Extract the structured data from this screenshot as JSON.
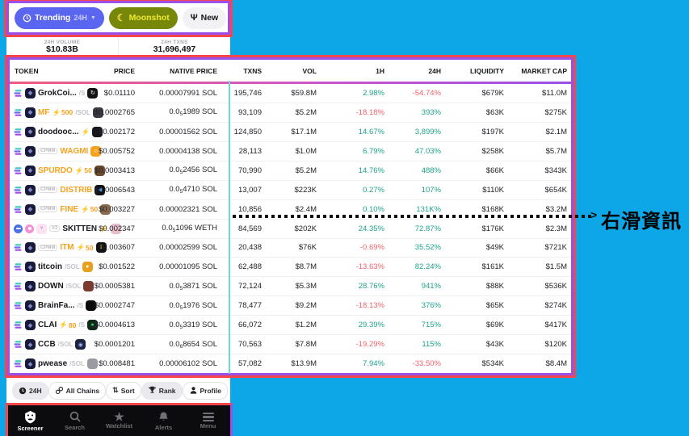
{
  "annotation": {
    "swipe_hint": "右滑資訊",
    "arrow": ">"
  },
  "colors": {
    "background": "#0da6e6",
    "annotation_red": "#f4474d",
    "annotation_purple": "#9b4fe8",
    "phone_edge_teal": "#6fd8d4",
    "positive": "#1fa28c",
    "negative": "#f2636b",
    "trending_blue": "#5b66f0",
    "moonshot_olive": "#76870a",
    "moonshot_text": "#f0ea2e",
    "orange_token": "#f5a21f"
  },
  "top_bar": {
    "trending": {
      "label": "Trending",
      "timeframe": "24H"
    },
    "moonshot": {
      "label": "Moonshot"
    },
    "new": {
      "label": "New"
    }
  },
  "stats": {
    "volume_label": "24H VOLUME",
    "volume_value": "$10.83B",
    "txns_label": "24H TXNS",
    "txns_value": "31,696,497"
  },
  "table": {
    "headers": [
      "TOKEN",
      "PRICE",
      "NATIVE PRICE",
      "TXNS",
      "VOL",
      "1H",
      "24H",
      "LIQUIDITY",
      "MARKET CAP"
    ],
    "rows": [
      {
        "name": "GrokCoi...",
        "name_color": "#17171c",
        "badge": null,
        "bolt": false,
        "bolt_num": "",
        "pair": "/S",
        "chain": "sol",
        "av_bg": "#141414",
        "av_fg": "#ffffff",
        "av_glyph": "↻",
        "price": "$0.01110",
        "native_pre": "0.00007991",
        "native_sub": "",
        "native_post": " SOL",
        "txns": "195,746",
        "vol": "$59.8M",
        "h1": "2.98%",
        "h1_dir": "up",
        "h24": "-54.74%",
        "h24_dir": "down",
        "liq": "$679K",
        "mcap": "$11.0M"
      },
      {
        "name": "MF",
        "name_color": "#f5a21f",
        "badge": null,
        "bolt": true,
        "bolt_num": "500",
        "pair": "/SOL",
        "chain": "sol",
        "av_bg": "#3a3a42",
        "av_fg": "#bbb",
        "av_glyph": "",
        "price": "$0.0002765",
        "native_pre": "0.0",
        "native_sub": "5",
        "native_post": "1989 SOL",
        "txns": "93,109",
        "vol": "$5.2M",
        "h1": "-18.18%",
        "h1_dir": "down",
        "h24": "393%",
        "h24_dir": "up",
        "liq": "$63K",
        "mcap": "$275K"
      },
      {
        "name": "doodooc...",
        "name_color": "#17171c",
        "badge": null,
        "bolt": true,
        "bolt_num": "",
        "pair": "",
        "chain": "sol",
        "av_bg": "#17171b",
        "av_fg": "#999",
        "av_glyph": "",
        "price": "$0.002172",
        "native_pre": "0.00001562",
        "native_sub": "",
        "native_post": " SOL",
        "txns": "124,850",
        "vol": "$17.1M",
        "h1": "14.67%",
        "h1_dir": "up",
        "h24": "3,899%",
        "h24_dir": "up",
        "liq": "$197K",
        "mcap": "$2.1M"
      },
      {
        "name": "WAGMI",
        "name_color": "#f5a21f",
        "badge": "CPMM",
        "bolt": false,
        "bolt_num": "",
        "pair": "",
        "chain": "sol",
        "av_bg": "#f5a21f",
        "av_fg": "#fff",
        "av_glyph": "☺",
        "price": "$0.005752",
        "native_pre": "0.00004138",
        "native_sub": "",
        "native_post": " SOL",
        "txns": "28,113",
        "vol": "$1.0M",
        "h1": "6.79%",
        "h1_dir": "up",
        "h24": "47.03%",
        "h24_dir": "up",
        "liq": "$258K",
        "mcap": "$5.7M"
      },
      {
        "name": "SPURDO",
        "name_color": "#f5a21f",
        "badge": null,
        "bolt": true,
        "bolt_num": "50",
        "pair": "",
        "chain": "sol",
        "av_bg": "#6b4a2f",
        "av_fg": "#d8c5a8",
        "av_glyph": "",
        "price": "$0.0003413",
        "native_pre": "0.0",
        "native_sub": "5",
        "native_post": "2456 SOL",
        "txns": "70,990",
        "vol": "$5.2M",
        "h1": "14.76%",
        "h1_dir": "up",
        "h24": "488%",
        "h24_dir": "up",
        "liq": "$66K",
        "mcap": "$343K"
      },
      {
        "name": "DISTRIB",
        "name_color": "#f5a21f",
        "badge": "CPMM",
        "bolt": false,
        "bolt_num": "",
        "pair": "",
        "chain": "sol",
        "av_bg": "#101018",
        "av_fg": "#4aa3f0",
        "av_glyph": "◀",
        "price": "$0.0006543",
        "native_pre": "0.0",
        "native_sub": "5",
        "native_post": "4710 SOL",
        "txns": "13,007",
        "vol": "$223K",
        "h1": "0.27%",
        "h1_dir": "up",
        "h24": "107%",
        "h24_dir": "up",
        "liq": "$110K",
        "mcap": "$654K"
      },
      {
        "name": "FINE",
        "name_color": "#f5a21f",
        "badge": "CPMM",
        "bolt": true,
        "bolt_num": "50",
        "pair": "",
        "chain": "sol",
        "av_bg": "#8a6a4a",
        "av_fg": "#e8d8b8",
        "av_glyph": "",
        "price": "$0.003227",
        "native_pre": "0.00002321",
        "native_sub": "",
        "native_post": " SOL",
        "txns": "10,856",
        "vol": "$2.4M",
        "h1": "0.10%",
        "h1_dir": "up",
        "h24": "131K%",
        "h24_dir": "up",
        "liq": "$168K",
        "mcap": "$3.2M"
      },
      {
        "name": "SKITTEN",
        "name_color": "#17171c",
        "badge": "V2",
        "bolt": true,
        "bolt_num": "",
        "pair": "",
        "chain": "eth",
        "av_bg": "#e8bcc8",
        "av_fg": "#fff",
        "av_glyph": "ᴖ",
        "price": "$0.002347",
        "native_pre": "0.0",
        "native_sub": "5",
        "native_post": "1096 WETH",
        "txns": "84,569",
        "vol": "$202K",
        "h1": "24.35%",
        "h1_dir": "up",
        "h24": "72.87%",
        "h24_dir": "up",
        "liq": "$176K",
        "mcap": "$2.3M"
      },
      {
        "name": "ITM",
        "name_color": "#f5a21f",
        "badge": "CPMM",
        "bolt": true,
        "bolt_num": "50",
        "pair": "",
        "chain": "sol",
        "av_bg": "#131313",
        "av_fg": "#ffd93b",
        "av_glyph": "‖",
        "price": "$0.003607",
        "native_pre": "0.00002599",
        "native_sub": "",
        "native_post": " SOL",
        "txns": "20,438",
        "vol": "$76K",
        "h1": "-0.69%",
        "h1_dir": "down",
        "h24": "35.52%",
        "h24_dir": "up",
        "liq": "$49K",
        "mcap": "$721K"
      },
      {
        "name": "titcoin",
        "name_color": "#17171c",
        "badge": null,
        "bolt": false,
        "bolt_num": "",
        "pair": "/SOL",
        "chain": "sol",
        "av_bg": "#e8a020",
        "av_fg": "#fff",
        "av_glyph": "●",
        "price": "$0.001522",
        "native_pre": "0.00001095",
        "native_sub": "",
        "native_post": " SOL",
        "txns": "62,488",
        "vol": "$8.7M",
        "h1": "-13.63%",
        "h1_dir": "down",
        "h24": "82.24%",
        "h24_dir": "up",
        "liq": "$161K",
        "mcap": "$1.5M"
      },
      {
        "name": "DOWN",
        "name_color": "#17171c",
        "badge": null,
        "bolt": false,
        "bolt_num": "",
        "pair": "/SOL",
        "chain": "sol",
        "av_bg": "#7a3b30",
        "av_fg": "#e8c8b8",
        "av_glyph": "",
        "price": "$0.0005381",
        "native_pre": "0.0",
        "native_sub": "5",
        "native_post": "3871 SOL",
        "txns": "72,124",
        "vol": "$5.3M",
        "h1": "28.76%",
        "h1_dir": "up",
        "h24": "941%",
        "h24_dir": "up",
        "liq": "$88K",
        "mcap": "$536K"
      },
      {
        "name": "BrainFa...",
        "name_color": "#17171c",
        "badge": null,
        "bolt": false,
        "bolt_num": "",
        "pair": "/S",
        "chain": "sol",
        "av_bg": "#0a0a0a",
        "av_fg": "#888",
        "av_glyph": "",
        "price": "$0.0002747",
        "native_pre": "0.0",
        "native_sub": "5",
        "native_post": "1976 SOL",
        "txns": "78,477",
        "vol": "$9.2M",
        "h1": "-18.13%",
        "h1_dir": "down",
        "h24": "376%",
        "h24_dir": "up",
        "liq": "$65K",
        "mcap": "$274K"
      },
      {
        "name": "CLAI",
        "name_color": "#17171c",
        "badge": null,
        "bolt": true,
        "bolt_num": "80",
        "pair": "/S",
        "chain": "sol",
        "av_bg": "#0f2a18",
        "av_fg": "#2ecc71",
        "av_glyph": "●",
        "price": "$0.0004613",
        "native_pre": "0.0",
        "native_sub": "5",
        "native_post": "3319 SOL",
        "txns": "66,072",
        "vol": "$1.2M",
        "h1": "29.39%",
        "h1_dir": "up",
        "h24": "715%",
        "h24_dir": "up",
        "liq": "$69K",
        "mcap": "$417K"
      },
      {
        "name": "CCB",
        "name_color": "#17171c",
        "badge": null,
        "bolt": false,
        "bolt_num": "",
        "pair": "/SOL",
        "chain": "sol",
        "av_bg": "#1b2340",
        "av_fg": "#9fb0e8",
        "av_glyph": "◉",
        "price": "$0.0001201",
        "native_pre": "0.0",
        "native_sub": "6",
        "native_post": "8654 SOL",
        "txns": "70,563",
        "vol": "$7.8M",
        "h1": "-19.29%",
        "h1_dir": "down",
        "h24": "115%",
        "h24_dir": "up",
        "liq": "$43K",
        "mcap": "$120K"
      },
      {
        "name": "pwease",
        "name_color": "#17171c",
        "badge": null,
        "bolt": false,
        "bolt_num": "",
        "pair": "/SOL",
        "chain": "sol",
        "av_bg": "#9a9aa2",
        "av_fg": "#444",
        "av_glyph": "",
        "price": "$0.008481",
        "native_pre": "0.00006102",
        "native_sub": "",
        "native_post": " SOL",
        "txns": "57,082",
        "vol": "$13.9M",
        "h1": "7.94%",
        "h1_dir": "up",
        "h24": "-33.50%",
        "h24_dir": "down",
        "liq": "$534K",
        "mcap": "$8.4M"
      }
    ]
  },
  "filter_bar": {
    "items": [
      "24H",
      "All Chains",
      "Sort",
      "Rank",
      "Profile"
    ]
  },
  "bottom_nav": {
    "items": [
      "Screener",
      "Search",
      "Watchlist",
      "Alerts",
      "Menu"
    ],
    "active": "Screener"
  }
}
